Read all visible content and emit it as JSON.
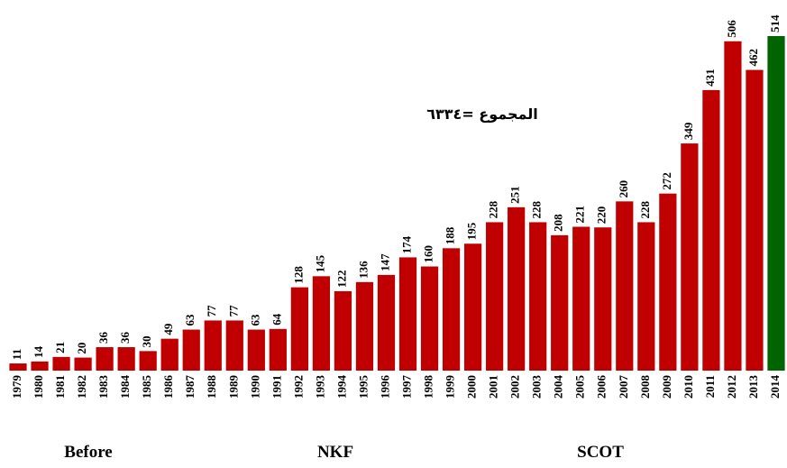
{
  "chart_data": {
    "type": "bar",
    "annotation": "المجموع =٦٣٣٤",
    "groups": [
      "Before",
      "NKF",
      "SCOT"
    ],
    "categories": [
      "1979",
      "1980",
      "1981",
      "1982",
      "1983",
      "1984",
      "1985",
      "1986",
      "1987",
      "1988",
      "1989",
      "1990",
      "1991",
      "1992",
      "1993",
      "1994",
      "1995",
      "1996",
      "1997",
      "1998",
      "1999",
      "2000",
      "2001",
      "2002",
      "2003",
      "2004",
      "2005",
      "2006",
      "2007",
      "2008",
      "2009",
      "2010",
      "2011",
      "2012",
      "2013",
      "2014"
    ],
    "values": [
      11,
      14,
      21,
      20,
      36,
      36,
      30,
      49,
      63,
      77,
      77,
      63,
      64,
      128,
      145,
      122,
      136,
      147,
      174,
      160,
      188,
      195,
      228,
      251,
      228,
      208,
      221,
      220,
      260,
      228,
      272,
      349,
      431,
      506,
      462,
      514
    ],
    "colors": [
      "#c00000",
      "#c00000",
      "#c00000",
      "#c00000",
      "#c00000",
      "#c00000",
      "#c00000",
      "#c00000",
      "#c00000",
      "#c00000",
      "#c00000",
      "#c00000",
      "#c00000",
      "#c00000",
      "#c00000",
      "#c00000",
      "#c00000",
      "#c00000",
      "#c00000",
      "#c00000",
      "#c00000",
      "#c00000",
      "#c00000",
      "#c00000",
      "#c00000",
      "#c00000",
      "#c00000",
      "#c00000",
      "#c00000",
      "#c00000",
      "#c00000",
      "#c00000",
      "#c00000",
      "#c00000",
      "#c00000",
      "#006400"
    ]
  }
}
